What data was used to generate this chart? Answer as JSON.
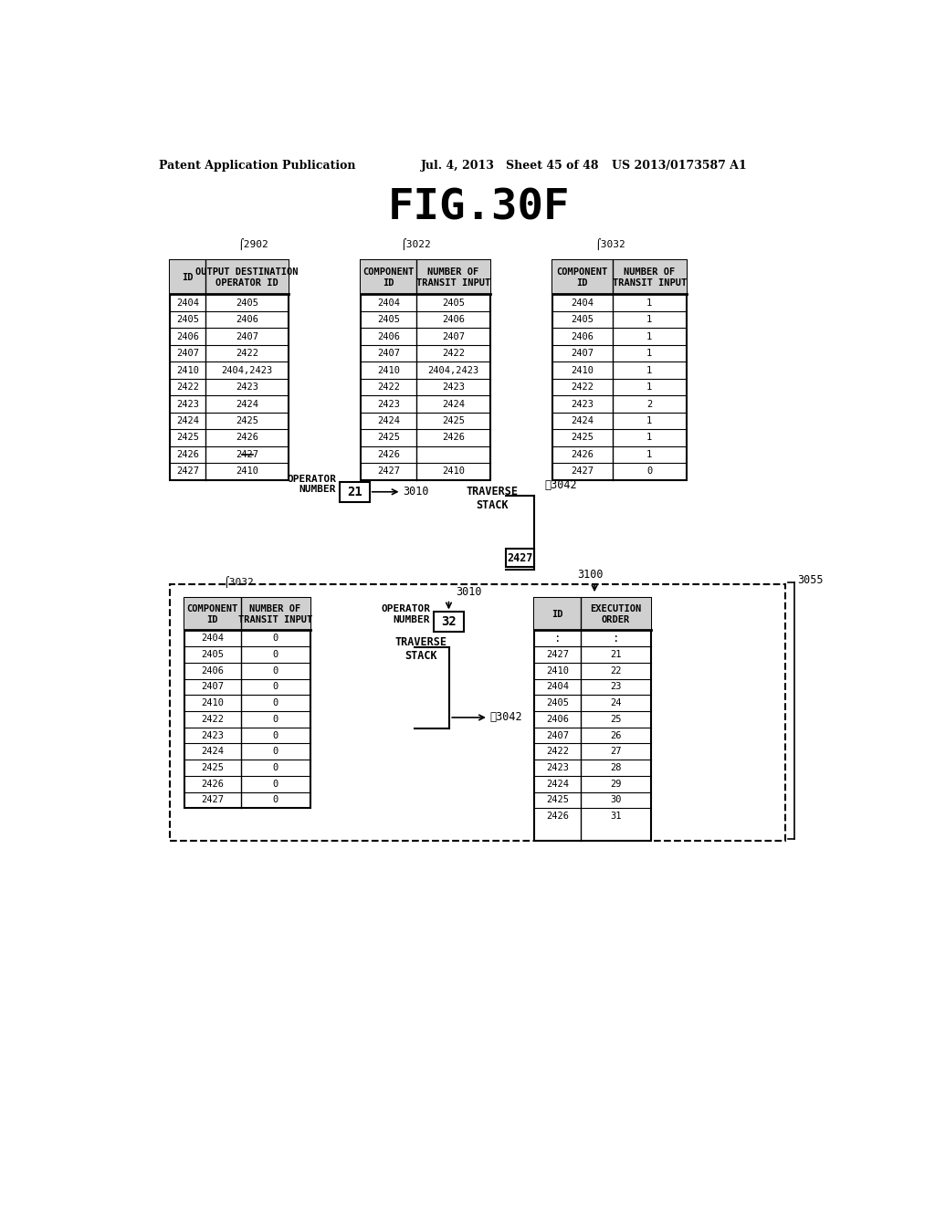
{
  "title": "FIG.30F",
  "header_text_left": "Patent Application Publication",
  "header_text_mid": "Jul. 4, 2013   Sheet 45 of 48",
  "header_text_right": "US 2013/0173587 A1",
  "table1_label": "2902",
  "table1_headers": [
    "ID",
    "OUTPUT DESTINATION\nOPERATOR ID"
  ],
  "table1_rows": [
    [
      "2404",
      "2405"
    ],
    [
      "2405",
      "2406"
    ],
    [
      "2406",
      "2407"
    ],
    [
      "2407",
      "2422"
    ],
    [
      "2410",
      "2404,2423"
    ],
    [
      "2422",
      "2423"
    ],
    [
      "2423",
      "2424"
    ],
    [
      "2424",
      "2425"
    ],
    [
      "2425",
      "2426"
    ],
    [
      "2426",
      "2427"
    ],
    [
      "2427",
      "2410"
    ]
  ],
  "table1_strikethrough_row": 9,
  "table2_label": "3022",
  "table2_headers": [
    "COMPONENT\nID",
    "NUMBER OF\nTRANSIT INPUT"
  ],
  "table2_rows": [
    [
      "2404",
      "2405"
    ],
    [
      "2405",
      "2406"
    ],
    [
      "2406",
      "2407"
    ],
    [
      "2407",
      "2422"
    ],
    [
      "2410",
      "2404,2423"
    ],
    [
      "2422",
      "2423"
    ],
    [
      "2423",
      "2424"
    ],
    [
      "2424",
      "2425"
    ],
    [
      "2425",
      "2426"
    ],
    [
      "2426",
      ""
    ],
    [
      "2427",
      "2410"
    ]
  ],
  "table3_label": "3032",
  "table3_headers": [
    "COMPONENT\nID",
    "NUMBER OF\nTRANSIT INPUT"
  ],
  "table3_rows": [
    [
      "2404",
      "1"
    ],
    [
      "2405",
      "1"
    ],
    [
      "2406",
      "1"
    ],
    [
      "2407",
      "1"
    ],
    [
      "2410",
      "1"
    ],
    [
      "2422",
      "1"
    ],
    [
      "2423",
      "2"
    ],
    [
      "2424",
      "1"
    ],
    [
      "2425",
      "1"
    ],
    [
      "2426",
      "1"
    ],
    [
      "2427",
      "0"
    ]
  ],
  "op1_text": "21",
  "op1_label": "3010",
  "op1_prefix": "OPERATOR\nNUMBER",
  "traverse1_label": "TRAVERSE\nSTACK",
  "traverse1_value": "2427",
  "arr1_label": "3042",
  "dashed_label": "3055",
  "table4_label": "3032",
  "table4_headers": [
    "COMPONENT\nID",
    "NUMBER OF\nTRANSIT INPUT"
  ],
  "table4_rows": [
    [
      "2404",
      "0"
    ],
    [
      "2405",
      "0"
    ],
    [
      "2406",
      "0"
    ],
    [
      "2407",
      "0"
    ],
    [
      "2410",
      "0"
    ],
    [
      "2422",
      "0"
    ],
    [
      "2423",
      "0"
    ],
    [
      "2424",
      "0"
    ],
    [
      "2425",
      "0"
    ],
    [
      "2426",
      "0"
    ],
    [
      "2427",
      "0"
    ]
  ],
  "op2_text": "32",
  "op2_label": "3010",
  "op2_prefix": "OPERATOR\nNUMBER",
  "traverse2_label": "TRAVERSE\nSTACK",
  "arr2_label": "3042",
  "table5_label": "3100",
  "table5_headers": [
    "ID",
    "EXECUTION\nORDER"
  ],
  "table5_rows": [
    [
      "2427",
      "21"
    ],
    [
      "2410",
      "22"
    ],
    [
      "2404",
      "23"
    ],
    [
      "2405",
      "24"
    ],
    [
      "2406",
      "25"
    ],
    [
      "2407",
      "26"
    ],
    [
      "2422",
      "27"
    ],
    [
      "2423",
      "28"
    ],
    [
      "2424",
      "29"
    ],
    [
      "2425",
      "30"
    ],
    [
      "2426",
      "31"
    ]
  ]
}
